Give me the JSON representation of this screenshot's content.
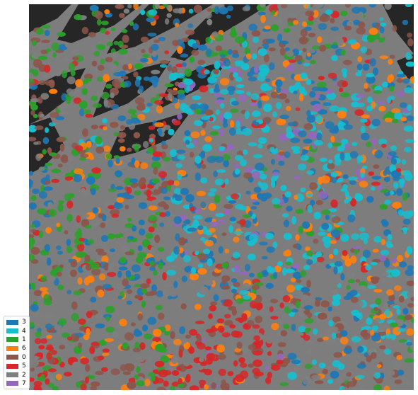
{
  "legend": {
    "items": [
      {
        "label": "3",
        "color": "#1f77b4"
      },
      {
        "label": "4",
        "color": "#17becf"
      },
      {
        "label": "1",
        "color": "#2ca02c"
      },
      {
        "label": "6",
        "color": "#ff7f0e"
      },
      {
        "label": "0",
        "color": "#8c564b"
      },
      {
        "label": "5",
        "color": "#d62728"
      },
      {
        "label": "2",
        "color": "#7f7f7f"
      },
      {
        "label": "7",
        "color": "#9467bd"
      }
    ]
  },
  "image": {
    "background_tissue_color": "#8a8a8a",
    "background_void_color": "#2a2a2a"
  }
}
